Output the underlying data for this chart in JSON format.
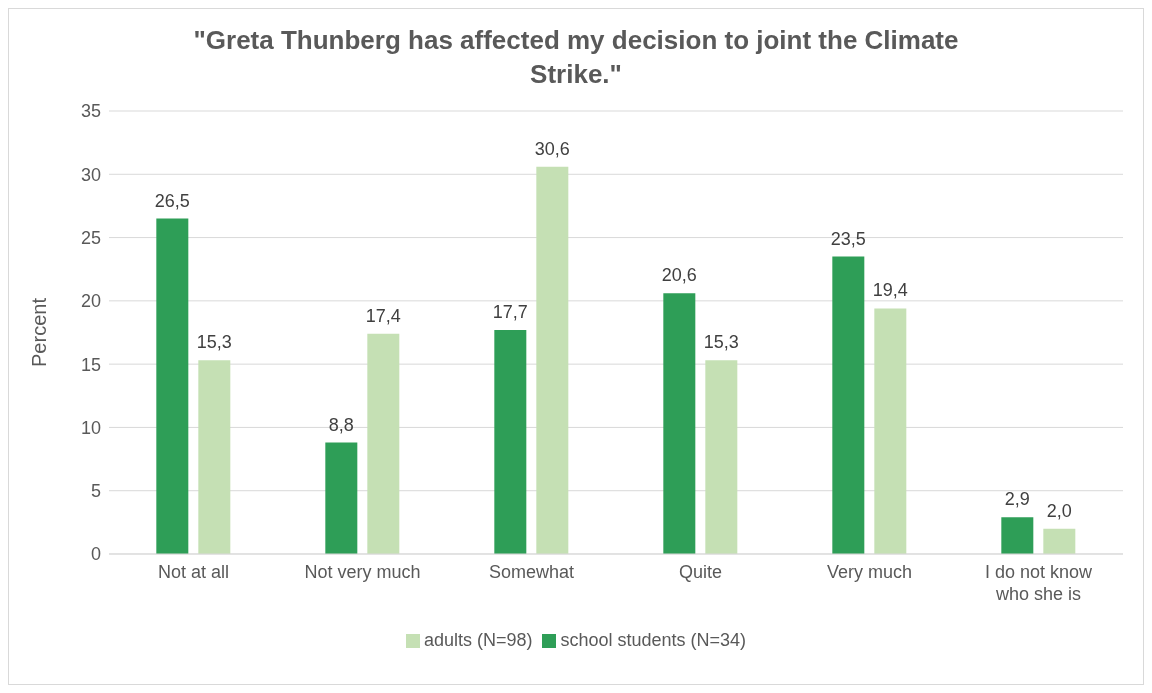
{
  "chart_data": {
    "type": "bar",
    "title": "\"Greta Thunberg has affected my decision to joint the Climate Strike.\"",
    "ylabel": "Percent",
    "categories": [
      "Not at all",
      "Not very much",
      "Somewhat",
      "Quite",
      "Very much",
      "I do not know who she is"
    ],
    "series": [
      {
        "name": "school students (N=34)",
        "color": "#2e9e57",
        "values": [
          26.5,
          8.8,
          17.7,
          20.6,
          23.5,
          2.9
        ],
        "value_labels": [
          "26,5",
          "8,8",
          "17,7",
          "20,6",
          "23,5",
          "2,9"
        ]
      },
      {
        "name": "adults (N=98)",
        "color": "#c5e0b4",
        "values": [
          15.3,
          17.4,
          30.6,
          15.3,
          19.4,
          2.0
        ],
        "value_labels": [
          "15,3",
          "17,4",
          "30,6",
          "15,3",
          "19,4",
          "2,0"
        ]
      }
    ],
    "ylim": [
      0,
      35
    ],
    "yticks": [
      0,
      5,
      10,
      15,
      20,
      25,
      30,
      35
    ],
    "grid": "y",
    "legend": "bottom"
  }
}
